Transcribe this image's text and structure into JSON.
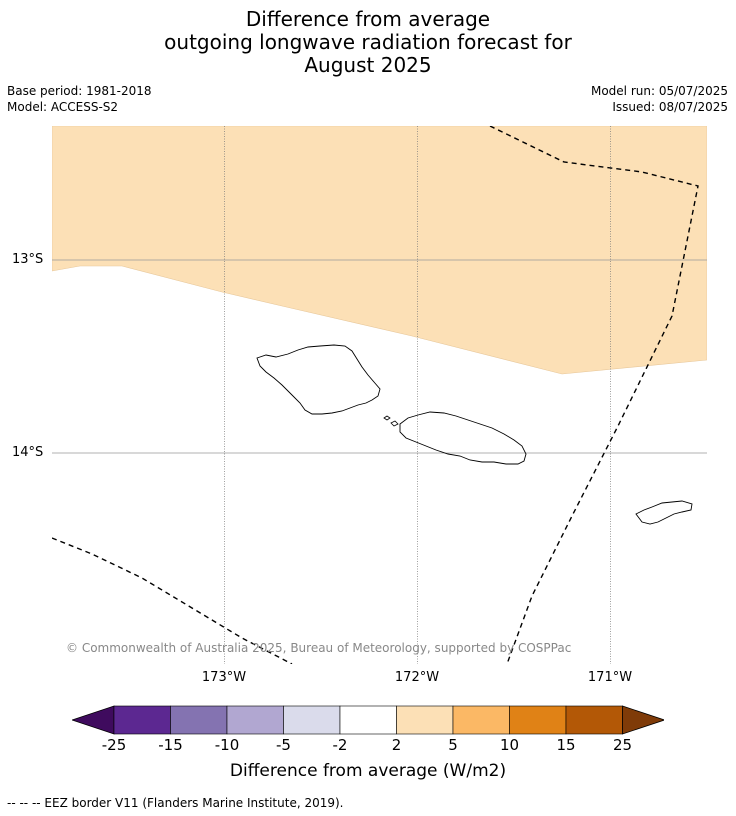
{
  "title": {
    "line1": "Difference from average",
    "line2": "outgoing longwave radiation forecast for",
    "line3": "August 2025"
  },
  "meta": {
    "base_period": "Base period: 1981-2018",
    "model": "Model: ACCESS-S2",
    "model_run": "Model run: 05/07/2025",
    "issued": "Issued: 08/07/2025"
  },
  "map": {
    "lat_labels": [
      "13°S",
      "14°S"
    ],
    "lon_labels": [
      "173°W",
      "172°W",
      "171°W"
    ],
    "anomaly_fill_color": "#fce0b6",
    "copyright": "© Commonwealth of Australia 2025, Bureau of Meteorology, supported by COSPPac"
  },
  "colorbar": {
    "ticks": [
      "-25",
      "-15",
      "-10",
      "-5",
      "-2",
      "2",
      "5",
      "10",
      "15",
      "25"
    ],
    "colors": [
      "#3f0b5e",
      "#5c2891",
      "#8473b1",
      "#b1a7d1",
      "#dadbeb",
      "#ffffff",
      "#fce0b6",
      "#fbb865",
      "#e08216",
      "#b35806",
      "#7f3b08"
    ],
    "label": "Difference from average (W/m2)"
  },
  "footer": "--  --  -- EEZ border V11 (Flanders Marine Institute, 2019)."
}
